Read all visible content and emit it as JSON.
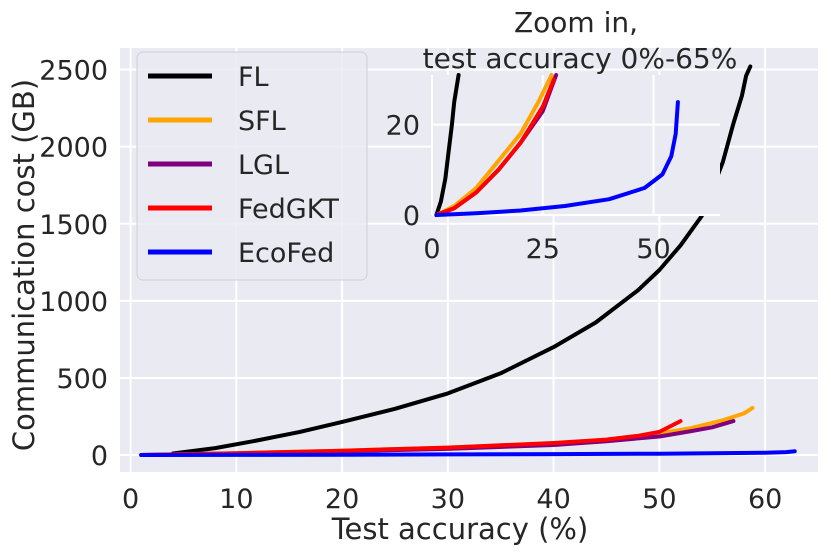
{
  "chart_data": [
    {
      "type": "line",
      "xlabel": "Test accuracy (%)",
      "ylabel": "Communication cost (GB)",
      "xlim": [
        -1,
        65
      ],
      "ylim": [
        -110,
        2640
      ],
      "xticks": [
        "0",
        "10",
        "20",
        "30",
        "40",
        "50",
        "60"
      ],
      "yticks": [
        "0",
        "500",
        "1000",
        "1500",
        "2000",
        "2500"
      ],
      "grid": true,
      "legend_position": "top-left",
      "series": [
        {
          "name": "FL",
          "color": "#000000",
          "x": [
            4,
            8,
            12,
            16,
            20,
            25,
            30,
            35,
            40,
            44,
            48,
            50,
            52,
            54,
            55,
            56,
            57,
            57.8,
            58.2,
            58.6
          ],
          "y": [
            10,
            45,
            95,
            150,
            215,
            300,
            400,
            530,
            700,
            860,
            1070,
            1200,
            1360,
            1550,
            1720,
            1900,
            2150,
            2330,
            2460,
            2520
          ]
        },
        {
          "name": "SFL",
          "color": "#FFA500",
          "x": [
            1,
            10,
            20,
            30,
            40,
            45,
            50,
            53,
            56,
            58,
            58.8
          ],
          "y": [
            0,
            12,
            28,
            48,
            75,
            100,
            140,
            175,
            225,
            270,
            305
          ]
        },
        {
          "name": "LGL",
          "color": "#800080",
          "x": [
            1,
            10,
            20,
            30,
            40,
            45,
            50,
            53,
            55,
            57
          ],
          "y": [
            0,
            10,
            24,
            40,
            65,
            90,
            120,
            155,
            180,
            220
          ]
        },
        {
          "name": "FedGKT",
          "color": "#FF0000",
          "x": [
            1,
            10,
            20,
            30,
            40,
            45,
            48,
            50,
            51,
            52
          ],
          "y": [
            0,
            12,
            28,
            48,
            78,
            100,
            125,
            150,
            185,
            220
          ]
        },
        {
          "name": "EcoFed",
          "color": "#0000FF",
          "x": [
            1,
            10,
            20,
            30,
            40,
            50,
            55,
            60,
            62,
            62.8
          ],
          "y": [
            0,
            1,
            2.5,
            4,
            6,
            9,
            11,
            15,
            19,
            24
          ]
        }
      ]
    },
    {
      "type": "line",
      "title_lines": [
        "Zoom in,",
        "test accuracy 0%-65%"
      ],
      "xlim": [
        0,
        65
      ],
      "ylim": [
        0,
        31
      ],
      "xticks": [
        "0",
        "25",
        "50"
      ],
      "yticks": [
        "0",
        "20"
      ],
      "grid": true,
      "series": [
        {
          "name": "FL",
          "color": "#000000",
          "x": [
            1,
            2,
            3,
            3.5,
            4,
            4.5,
            5,
            5.5,
            6
          ],
          "y": [
            0,
            3,
            8,
            12,
            16,
            20,
            25,
            28,
            31
          ]
        },
        {
          "name": "SFL",
          "color": "#FFA500",
          "x": [
            1,
            5,
            10,
            15,
            20,
            24,
            27
          ],
          "y": [
            0,
            2,
            6,
            12,
            18,
            25,
            31
          ]
        },
        {
          "name": "LGL",
          "color": "#800080",
          "x": [
            1,
            5,
            10,
            15,
            20,
            25,
            28
          ],
          "y": [
            0,
            1.5,
            5,
            10,
            16,
            23,
            31
          ]
        },
        {
          "name": "FedGKT",
          "color": "#FF0000",
          "x": [
            1,
            5,
            10,
            15,
            20,
            25,
            27.5
          ],
          "y": [
            0,
            1.5,
            5,
            10,
            16,
            24,
            30
          ]
        },
        {
          "name": "EcoFed",
          "color": "#0000FF",
          "x": [
            1,
            10,
            20,
            30,
            40,
            48,
            52,
            54,
            55,
            55.5
          ],
          "y": [
            0,
            0.4,
            1,
            2,
            3.5,
            6,
            9,
            13,
            18,
            25
          ]
        }
      ]
    }
  ]
}
